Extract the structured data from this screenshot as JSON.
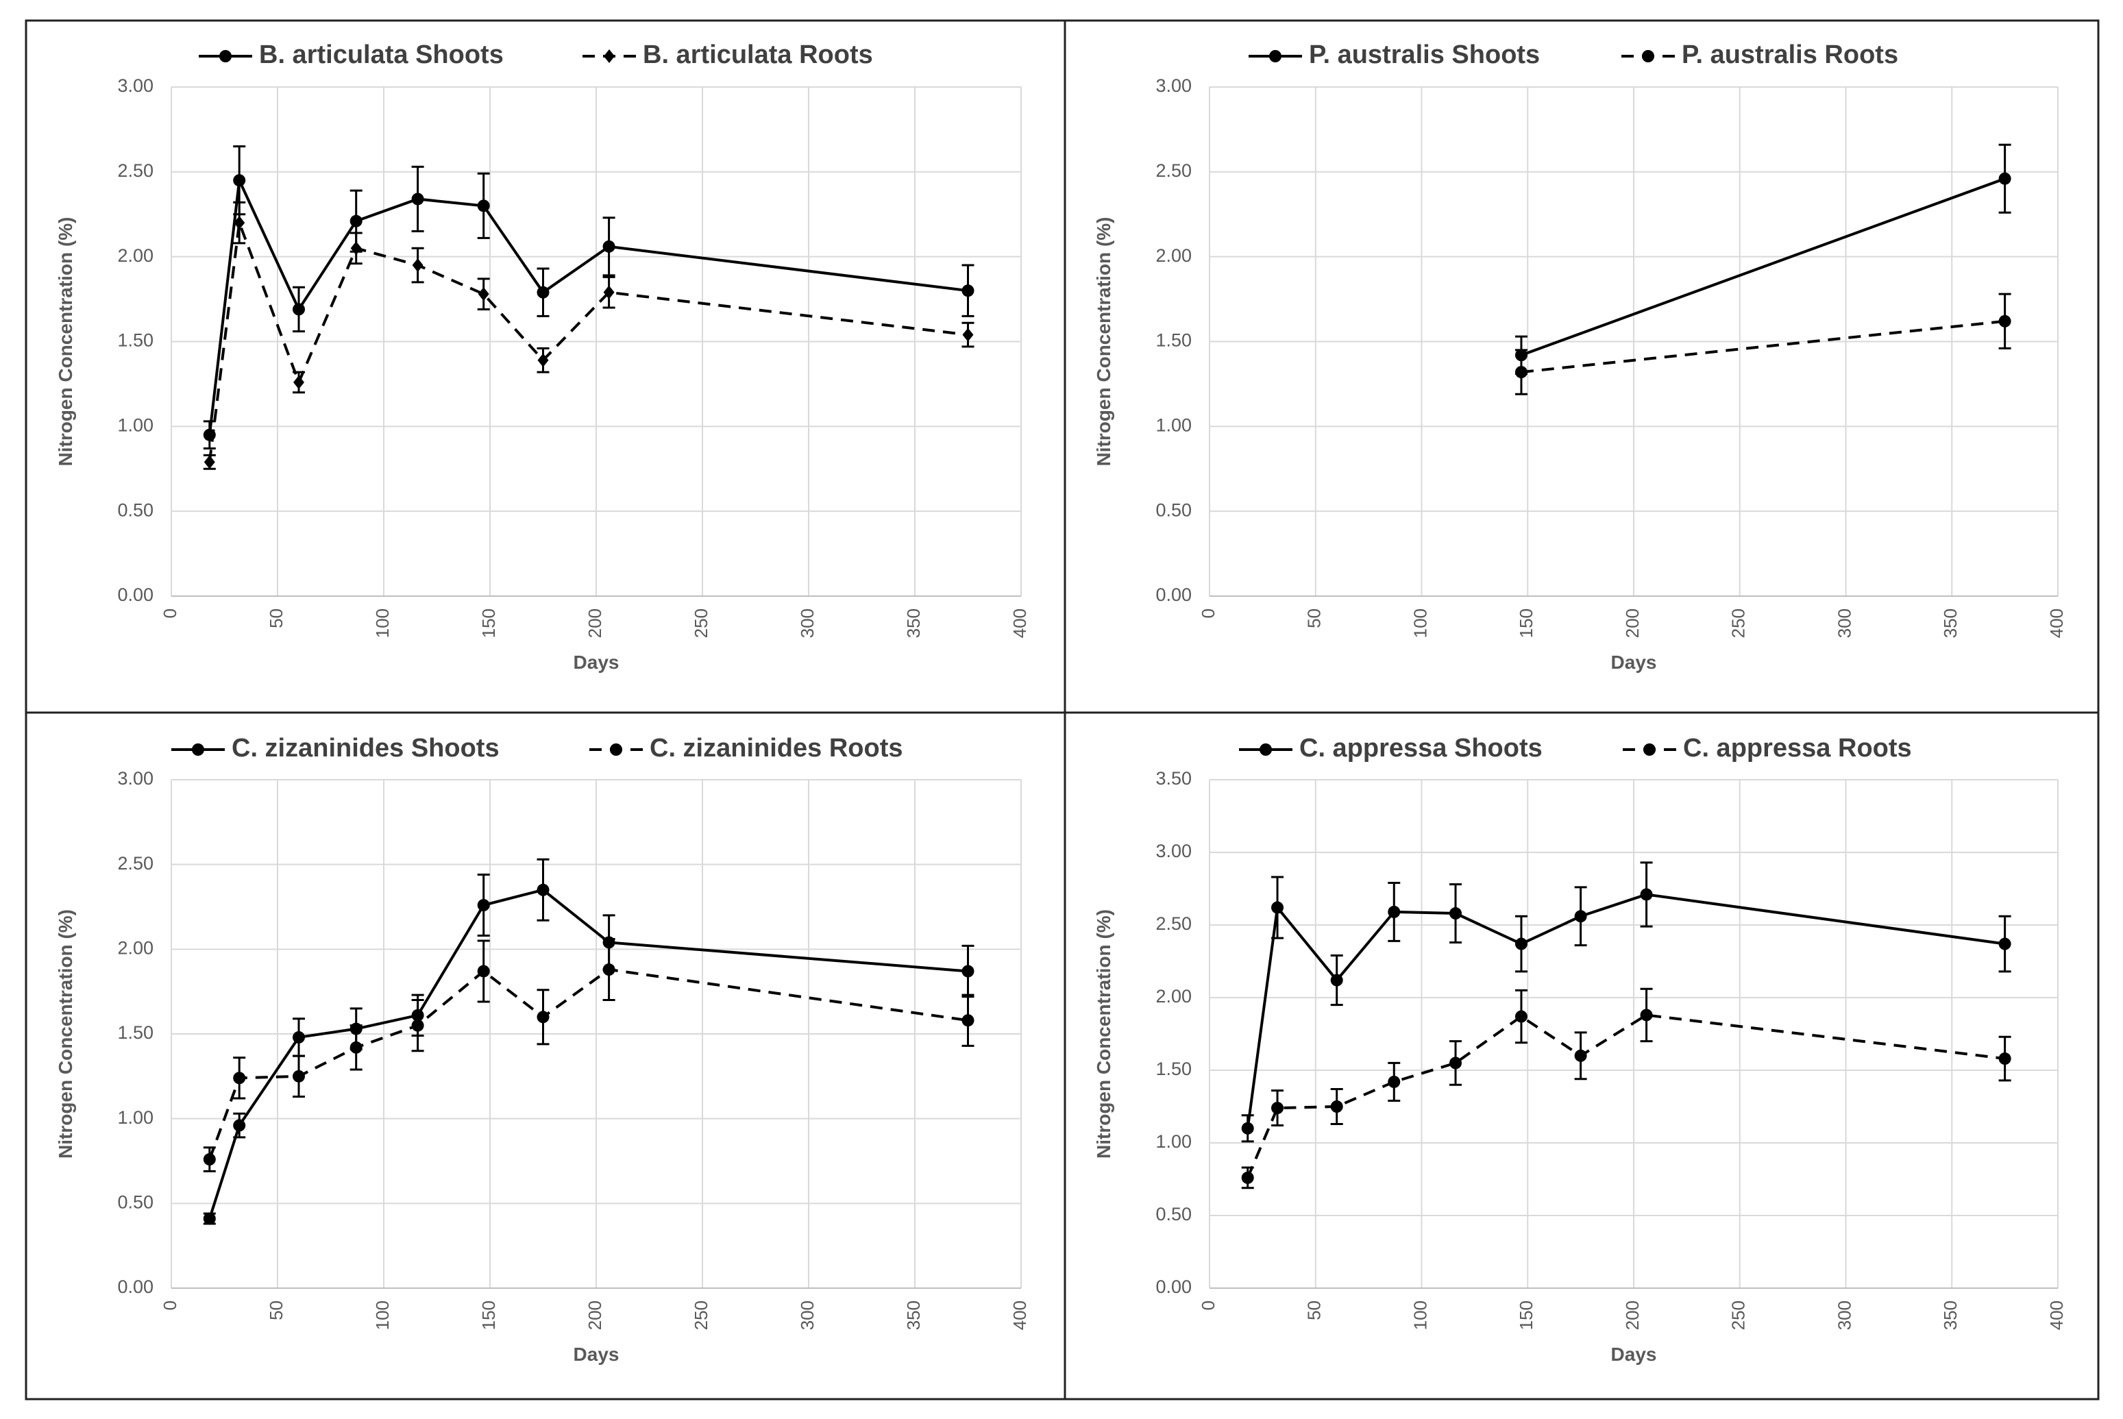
{
  "chart_data": [
    {
      "type": "line",
      "xlabel": "Days",
      "ylabel": "Nitrogen Concentration (%)",
      "xlim": [
        0,
        400
      ],
      "ylim": [
        0,
        3
      ],
      "xticks": [
        "0",
        "50",
        "100",
        "150",
        "200",
        "250",
        "300",
        "350",
        "400"
      ],
      "yticks": [
        "0.00",
        "0.50",
        "1.00",
        "1.50",
        "2.00",
        "2.50",
        "3.00"
      ],
      "grid": true,
      "legend_position": "top",
      "series": [
        {
          "name": "B. articulata Shoots",
          "style": "solid",
          "x": [
            18,
            32,
            60,
            87,
            116,
            147,
            175,
            206,
            375
          ],
          "y": [
            0.95,
            2.45,
            1.69,
            2.21,
            2.34,
            2.3,
            1.79,
            2.06,
            1.8
          ],
          "err": [
            0.08,
            0.2,
            0.13,
            0.18,
            0.19,
            0.19,
            0.14,
            0.17,
            0.15
          ]
        },
        {
          "name": "B. articulata Roots",
          "style": "dashed",
          "x": [
            18,
            32,
            60,
            87,
            116,
            147,
            175,
            206,
            375
          ],
          "y": [
            0.79,
            2.2,
            1.26,
            2.05,
            1.95,
            1.78,
            1.39,
            1.79,
            1.54
          ],
          "err": [
            0.04,
            0.12,
            0.06,
            0.09,
            0.1,
            0.09,
            0.07,
            0.09,
            0.07
          ]
        }
      ]
    },
    {
      "type": "line",
      "xlabel": "Days",
      "ylabel": "Nitrogen Concentration (%)",
      "xlim": [
        0,
        400
      ],
      "ylim": [
        0,
        3
      ],
      "xticks": [
        "0",
        "50",
        "100",
        "150",
        "200",
        "250",
        "300",
        "350",
        "400"
      ],
      "yticks": [
        "0.00",
        "0.50",
        "1.00",
        "1.50",
        "2.00",
        "2.50",
        "3.00"
      ],
      "grid": true,
      "legend_position": "top",
      "series": [
        {
          "name": "P. australis Shoots",
          "style": "solid",
          "x": [
            147,
            375
          ],
          "y": [
            1.42,
            2.46
          ],
          "err": [
            0.11,
            0.2
          ]
        },
        {
          "name": "P. australis Roots",
          "style": "dashed",
          "x": [
            147,
            375
          ],
          "y": [
            1.32,
            1.62
          ],
          "err": [
            0.13,
            0.16
          ]
        }
      ]
    },
    {
      "type": "line",
      "xlabel": "Days",
      "ylabel": "Nitrogen Concentration (%)",
      "xlim": [
        0,
        400
      ],
      "ylim": [
        0,
        3
      ],
      "xticks": [
        "0",
        "50",
        "100",
        "150",
        "200",
        "250",
        "300",
        "350",
        "400"
      ],
      "yticks": [
        "0.00",
        "0.50",
        "1.00",
        "1.50",
        "2.00",
        "2.50",
        "3.00"
      ],
      "grid": true,
      "legend_position": "top",
      "series": [
        {
          "name": "C. zizaninides Shoots",
          "style": "solid",
          "x": [
            18,
            32,
            60,
            87,
            116,
            147,
            175,
            206,
            375
          ],
          "y": [
            0.41,
            0.96,
            1.48,
            1.53,
            1.61,
            2.26,
            2.35,
            2.04,
            1.87
          ],
          "err": [
            0.03,
            0.07,
            0.11,
            0.12,
            0.12,
            0.18,
            0.18,
            0.16,
            0.15
          ]
        },
        {
          "name": "C. zizaninides Roots",
          "style": "dashed",
          "x": [
            18,
            32,
            60,
            87,
            116,
            147,
            175,
            206,
            375
          ],
          "y": [
            0.76,
            1.24,
            1.25,
            1.42,
            1.55,
            1.87,
            1.6,
            1.88,
            1.58
          ],
          "err": [
            0.07,
            0.12,
            0.12,
            0.13,
            0.15,
            0.18,
            0.16,
            0.18,
            0.15
          ]
        }
      ]
    },
    {
      "type": "line",
      "xlabel": "Days",
      "ylabel": "Nitrogen Concentration (%)",
      "xlim": [
        0,
        400
      ],
      "ylim": [
        0,
        3.5
      ],
      "xticks": [
        "0",
        "50",
        "100",
        "150",
        "200",
        "250",
        "300",
        "350",
        "400"
      ],
      "yticks": [
        "0.00",
        "0.50",
        "1.00",
        "1.50",
        "2.00",
        "2.50",
        "3.00",
        "3.50"
      ],
      "grid": true,
      "legend_position": "top",
      "series": [
        {
          "name": "C. appressa Shoots",
          "style": "solid",
          "x": [
            18,
            32,
            60,
            87,
            116,
            147,
            175,
            206,
            375
          ],
          "y": [
            1.1,
            2.62,
            2.12,
            2.59,
            2.58,
            2.37,
            2.56,
            2.71,
            2.37
          ],
          "err": [
            0.09,
            0.21,
            0.17,
            0.2,
            0.2,
            0.19,
            0.2,
            0.22,
            0.19
          ]
        },
        {
          "name": "C. appressa Roots",
          "style": "dashed",
          "x": [
            18,
            32,
            60,
            87,
            116,
            147,
            175,
            206,
            375
          ],
          "y": [
            0.76,
            1.24,
            1.25,
            1.42,
            1.55,
            1.87,
            1.6,
            1.88,
            1.58
          ],
          "err": [
            0.07,
            0.12,
            0.12,
            0.13,
            0.15,
            0.18,
            0.16,
            0.18,
            0.15
          ]
        }
      ]
    }
  ]
}
